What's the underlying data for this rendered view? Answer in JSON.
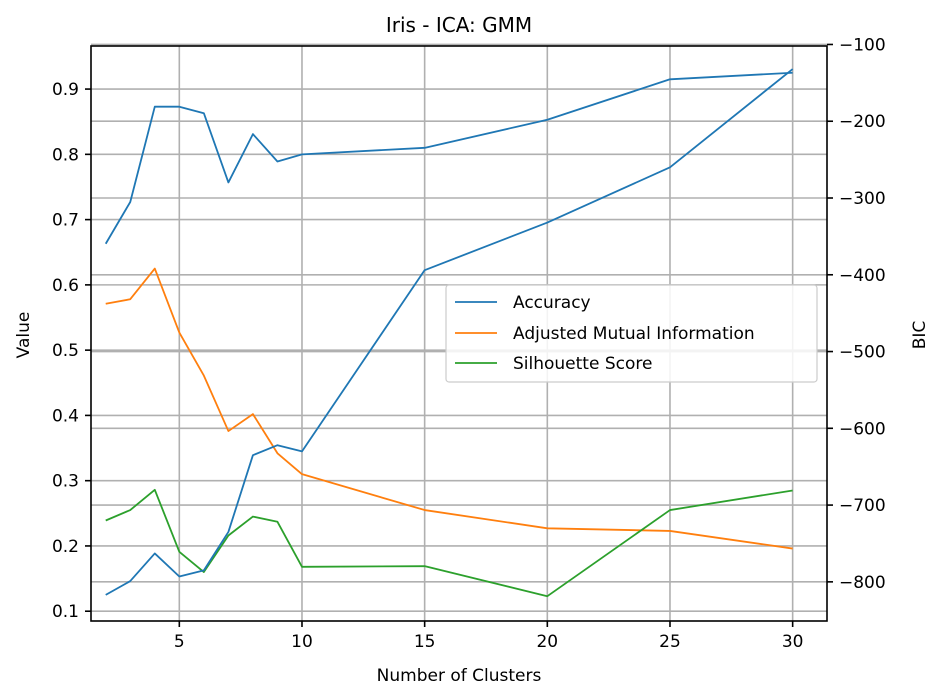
{
  "chart_data": {
    "type": "line",
    "title": "Iris - ICA: GMM",
    "xlabel": "Number of Clusters",
    "ylabel": "Value",
    "y2label": "BIC",
    "x": [
      2,
      3,
      4,
      5,
      6,
      7,
      8,
      9,
      10,
      15,
      20,
      25,
      30
    ],
    "xticks": [
      5,
      10,
      15,
      20,
      25,
      30
    ],
    "xlim": [
      1.4,
      31.4
    ],
    "ylim": [
      0.085,
      0.966
    ],
    "yticks": [
      0.1,
      0.2,
      0.3,
      0.4,
      0.5,
      0.6,
      0.7,
      0.8,
      0.9
    ],
    "y2lim": [
      -851,
      -102
    ],
    "y2ticks": [
      -800,
      -700,
      -600,
      -500,
      -400,
      -300,
      -200,
      -100
    ],
    "grid": true,
    "legend_position": "center-right",
    "series": [
      {
        "name": "Accuracy",
        "color": "#1f77b4",
        "axis": "left",
        "values": [
          0.663,
          0.727,
          0.873,
          0.873,
          0.863,
          0.757,
          0.831,
          0.789,
          0.8,
          0.81,
          0.853,
          0.915,
          0.925
        ]
      },
      {
        "name": "Adjusted Mutual Information",
        "color": "#ff7f0e",
        "axis": "left",
        "values": [
          0.571,
          0.578,
          0.625,
          0.527,
          0.461,
          0.376,
          0.402,
          0.342,
          0.31,
          0.255,
          0.227,
          0.223,
          0.196
        ]
      },
      {
        "name": "Silhouette Score",
        "color": "#2ca02c",
        "axis": "left",
        "values": [
          0.239,
          0.255,
          0.286,
          0.191,
          0.16,
          0.216,
          0.245,
          0.237,
          0.168,
          0.169,
          0.123,
          0.255,
          0.285
        ]
      },
      {
        "name": "BIC",
        "color": "#1f77b4",
        "axis": "right",
        "values": [
          -817,
          -799,
          -763,
          -793,
          -785,
          -735,
          -635,
          -622,
          -630,
          -394,
          -332,
          -260,
          -132
        ]
      }
    ],
    "legend": [
      "Accuracy",
      "Adjusted Mutual Information",
      "Silhouette Score"
    ]
  }
}
